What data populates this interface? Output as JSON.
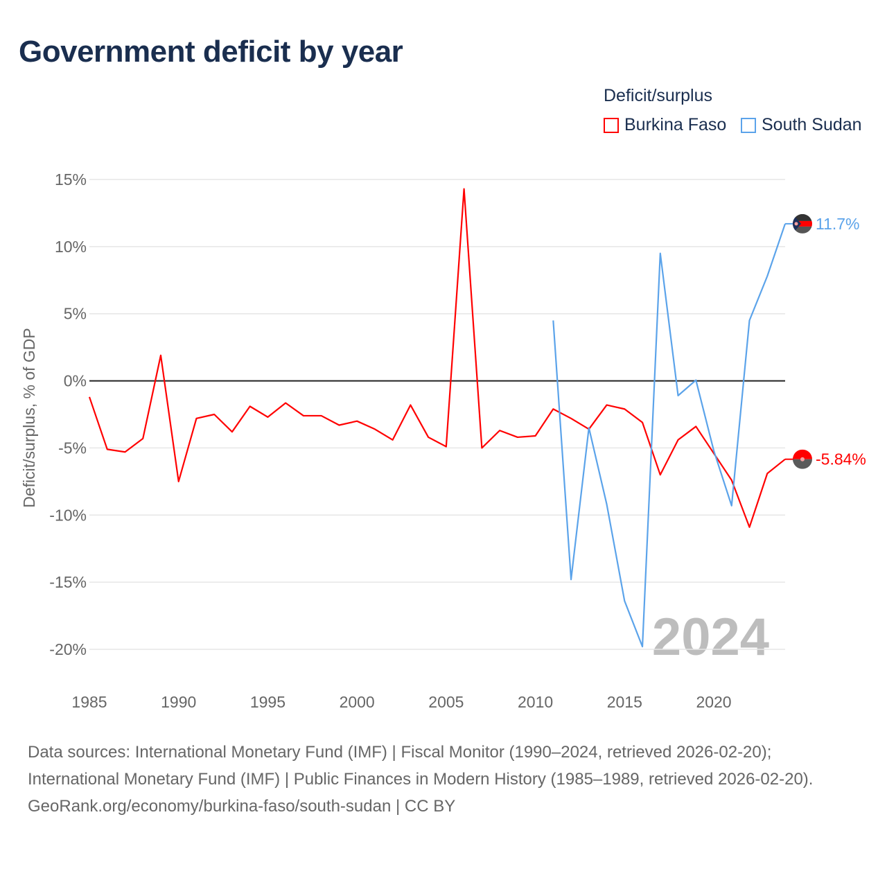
{
  "title": "Government deficit by year",
  "legend": {
    "title": "Deficit/surplus",
    "items": [
      {
        "name": "Burkina Faso",
        "color": "#ff0000"
      },
      {
        "name": "South Sudan",
        "color": "#5ba3ea"
      }
    ]
  },
  "watermark_year": "2024",
  "footer": {
    "sources": "Data sources: International Monetary Fund (IMF) | Fiscal Monitor (1990–2024, retrieved 2026-02-20); International Monetary Fund (IMF) | Public Finances in Modern History (1985–1989, retrieved 2026-02-20).",
    "credit": "GeoRank.org/economy/burkina-faso/south-sudan | CC BY"
  },
  "chart_data": {
    "type": "line",
    "title": "Government deficit by year",
    "xlabel": "",
    "ylabel": "Deficit/surplus, % of GDP",
    "xlim": [
      1985,
      2024
    ],
    "ylim": [
      -20,
      15
    ],
    "x_ticks": [
      1985,
      1990,
      1995,
      2000,
      2005,
      2010,
      2015,
      2020
    ],
    "x_tick_labels": [
      "1985",
      "1990",
      "1995",
      "2000",
      "2005",
      "2010",
      "2015",
      "2020"
    ],
    "y_ticks": [
      15,
      10,
      5,
      0,
      -5,
      -10,
      -15,
      -20
    ],
    "y_tick_labels": [
      "15%",
      "10%",
      "5%",
      "0%",
      "-5%",
      "-10%",
      "-15%",
      "-20%"
    ],
    "grid": true,
    "legend_position": "top-right",
    "series": [
      {
        "name": "Burkina Faso",
        "color": "#ff0000",
        "end_label": "-5.84%",
        "x": [
          1985,
          1986,
          1987,
          1988,
          1989,
          1990,
          1991,
          1992,
          1993,
          1994,
          1995,
          1996,
          1997,
          1998,
          1999,
          2000,
          2001,
          2002,
          2003,
          2004,
          2005,
          2006,
          2007,
          2008,
          2009,
          2010,
          2011,
          2012,
          2013,
          2014,
          2015,
          2016,
          2017,
          2018,
          2019,
          2020,
          2021,
          2022,
          2023,
          2024
        ],
        "values": [
          -1.2,
          -5.1,
          -5.3,
          -4.3,
          1.9,
          -7.5,
          -2.8,
          -2.5,
          -3.8,
          -1.9,
          -2.7,
          -1.65,
          -2.6,
          -2.6,
          -3.3,
          -3.0,
          -3.6,
          -4.4,
          -1.8,
          -4.2,
          -4.9,
          14.3,
          -5.0,
          -3.7,
          -4.2,
          -4.1,
          -2.1,
          -2.8,
          -3.6,
          -1.8,
          -2.1,
          -3.1,
          -7.0,
          -4.4,
          -3.4,
          -5.4,
          -7.4,
          -10.9,
          -6.9,
          -5.84
        ]
      },
      {
        "name": "South Sudan",
        "color": "#5ba3ea",
        "end_label": "11.7%",
        "x": [
          2011,
          2012,
          2013,
          2014,
          2015,
          2016,
          2017,
          2018,
          2019,
          2020,
          2021,
          2022,
          2023,
          2024
        ],
        "values": [
          4.5,
          -14.8,
          -3.5,
          -9.2,
          -16.4,
          -19.8,
          9.5,
          -1.1,
          0.05,
          -5.2,
          -9.3,
          4.5,
          7.8,
          11.7
        ]
      }
    ]
  }
}
